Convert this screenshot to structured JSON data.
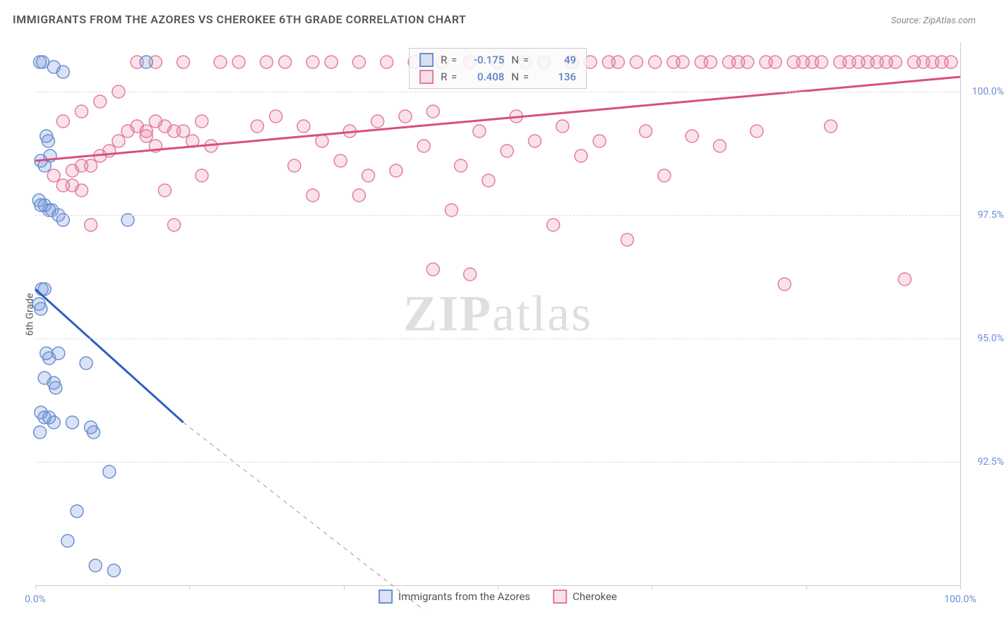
{
  "title": "IMMIGRANTS FROM THE AZORES VS CHEROKEE 6TH GRADE CORRELATION CHART",
  "source": "Source: ZipAtlas.com",
  "watermark": {
    "prefix": "ZIP",
    "suffix": "atlas"
  },
  "chart": {
    "type": "scatter",
    "y_label": "6th Grade",
    "background_color": "#ffffff",
    "grid_color": "#dddddd",
    "axis_color": "#cccccc",
    "tick_label_color": "#6b8fd4",
    "xlim": [
      0,
      100
    ],
    "ylim": [
      90,
      101
    ],
    "x_ticks": [
      0,
      16.67,
      33.33,
      50,
      66.67,
      83.33,
      100
    ],
    "x_tick_labels": {
      "0": "0.0%",
      "100": "100.0%"
    },
    "y_ticks": [
      92.5,
      95.0,
      97.5,
      100.0
    ],
    "y_tick_labels": [
      "92.5%",
      "95.0%",
      "97.5%",
      "100.0%"
    ],
    "marker_radius": 9,
    "marker_stroke_width": 1.5,
    "series": [
      {
        "name": "Immigrants from the Azores",
        "color": "#6b8fd4",
        "fill": "rgba(107,143,212,0.25)",
        "r": -0.175,
        "n": 49,
        "trend": {
          "x1": 0,
          "y1": 96.0,
          "x2": 16,
          "y2": 93.3,
          "dash_to_x": 42,
          "dash_to_y": 89.5
        },
        "points": [
          [
            0.5,
            100.6
          ],
          [
            0.8,
            100.6
          ],
          [
            2,
            100.5
          ],
          [
            3,
            100.4
          ],
          [
            12,
            100.6
          ],
          [
            1.2,
            99.1
          ],
          [
            1.4,
            99.0
          ],
          [
            1.6,
            98.7
          ],
          [
            0.6,
            98.6
          ],
          [
            1.0,
            98.5
          ],
          [
            0.4,
            97.8
          ],
          [
            0.6,
            97.7
          ],
          [
            1.0,
            97.7
          ],
          [
            1.5,
            97.6
          ],
          [
            1.8,
            97.6
          ],
          [
            2.5,
            97.5
          ],
          [
            3.0,
            97.4
          ],
          [
            10,
            97.4
          ],
          [
            0.7,
            96.0
          ],
          [
            1.0,
            96.0
          ],
          [
            0.4,
            95.7
          ],
          [
            0.6,
            95.6
          ],
          [
            1.2,
            94.7
          ],
          [
            1.5,
            94.6
          ],
          [
            2.5,
            94.7
          ],
          [
            5.5,
            94.5
          ],
          [
            1.0,
            94.2
          ],
          [
            2.0,
            94.1
          ],
          [
            2.2,
            94.0
          ],
          [
            0.6,
            93.5
          ],
          [
            1.0,
            93.4
          ],
          [
            1.5,
            93.4
          ],
          [
            2.0,
            93.3
          ],
          [
            4.0,
            93.3
          ],
          [
            0.5,
            93.1
          ],
          [
            6.0,
            93.2
          ],
          [
            6.3,
            93.1
          ],
          [
            8,
            92.3
          ],
          [
            4.5,
            91.5
          ],
          [
            3.5,
            90.9
          ],
          [
            6.5,
            90.4
          ],
          [
            8.5,
            90.3
          ]
        ]
      },
      {
        "name": "Cherokee",
        "color": "#e57d9a",
        "fill": "rgba(229,125,154,0.22)",
        "r": 0.408,
        "n": 136,
        "trend": {
          "x1": 0,
          "y1": 98.6,
          "x2": 100,
          "y2": 100.3
        },
        "points": [
          [
            2,
            98.3
          ],
          [
            3,
            98.1
          ],
          [
            4,
            98.4
          ],
          [
            5,
            98.5
          ],
          [
            6,
            98.5
          ],
          [
            7,
            98.7
          ],
          [
            8,
            98.8
          ],
          [
            9,
            99.0
          ],
          [
            10,
            99.2
          ],
          [
            3,
            99.4
          ],
          [
            5,
            99.6
          ],
          [
            7,
            99.8
          ],
          [
            9,
            100.0
          ],
          [
            11,
            99.3
          ],
          [
            12,
            99.2
          ],
          [
            13,
            99.4
          ],
          [
            14,
            99.3
          ],
          [
            15,
            99.2
          ],
          [
            11,
            100.6
          ],
          [
            13,
            100.6
          ],
          [
            16,
            100.6
          ],
          [
            18,
            99.4
          ],
          [
            19,
            98.9
          ],
          [
            20,
            100.6
          ],
          [
            22,
            100.6
          ],
          [
            24,
            99.3
          ],
          [
            25,
            100.6
          ],
          [
            26,
            99.5
          ],
          [
            27,
            100.6
          ],
          [
            28,
            98.5
          ],
          [
            29,
            99.3
          ],
          [
            30,
            100.6
          ],
          [
            31,
            99.0
          ],
          [
            32,
            100.6
          ],
          [
            33,
            98.6
          ],
          [
            34,
            99.2
          ],
          [
            35,
            100.6
          ],
          [
            36,
            98.3
          ],
          [
            37,
            99.4
          ],
          [
            38,
            100.6
          ],
          [
            39,
            98.4
          ],
          [
            40,
            99.5
          ],
          [
            41,
            100.6
          ],
          [
            42,
            98.9
          ],
          [
            43,
            99.6
          ],
          [
            44,
            100.6
          ],
          [
            45,
            97.6
          ],
          [
            46,
            98.5
          ],
          [
            47,
            100.6
          ],
          [
            48,
            99.2
          ],
          [
            49,
            98.2
          ],
          [
            50,
            100.6
          ],
          [
            51,
            98.8
          ],
          [
            52,
            99.5
          ],
          [
            53,
            100.6
          ],
          [
            54,
            99.0
          ],
          [
            55,
            100.6
          ],
          [
            56,
            97.3
          ],
          [
            57,
            99.3
          ],
          [
            58,
            100.6
          ],
          [
            59,
            98.7
          ],
          [
            60,
            100.6
          ],
          [
            61,
            99.0
          ],
          [
            62,
            100.6
          ],
          [
            63,
            100.6
          ],
          [
            64,
            97.0
          ],
          [
            65,
            100.6
          ],
          [
            66,
            99.2
          ],
          [
            67,
            100.6
          ],
          [
            68,
            98.3
          ],
          [
            69,
            100.6
          ],
          [
            70,
            100.6
          ],
          [
            71,
            99.1
          ],
          [
            72,
            100.6
          ],
          [
            73,
            100.6
          ],
          [
            74,
            98.9
          ],
          [
            75,
            100.6
          ],
          [
            76,
            100.6
          ],
          [
            77,
            100.6
          ],
          [
            78,
            99.2
          ],
          [
            79,
            100.6
          ],
          [
            80,
            100.6
          ],
          [
            81,
            96.1
          ],
          [
            82,
            100.6
          ],
          [
            83,
            100.6
          ],
          [
            84,
            100.6
          ],
          [
            85,
            100.6
          ],
          [
            86,
            99.3
          ],
          [
            87,
            100.6
          ],
          [
            88,
            100.6
          ],
          [
            89,
            100.6
          ],
          [
            90,
            100.6
          ],
          [
            91,
            100.6
          ],
          [
            92,
            100.6
          ],
          [
            93,
            100.6
          ],
          [
            94,
            96.2
          ],
          [
            95,
            100.6
          ],
          [
            96,
            100.6
          ],
          [
            97,
            100.6
          ],
          [
            98,
            100.6
          ],
          [
            99,
            100.6
          ],
          [
            14,
            98.0
          ],
          [
            15,
            97.3
          ],
          [
            16,
            99.2
          ],
          [
            17,
            99.0
          ],
          [
            18,
            98.3
          ],
          [
            4,
            98.1
          ],
          [
            5,
            98.0
          ],
          [
            6,
            97.3
          ],
          [
            43,
            96.4
          ],
          [
            47,
            96.3
          ],
          [
            35,
            97.9
          ],
          [
            30,
            97.9
          ],
          [
            12,
            99.1
          ],
          [
            13,
            98.9
          ]
        ]
      }
    ]
  },
  "legend_box": {
    "r_label": "R =",
    "n_label": "N ="
  }
}
